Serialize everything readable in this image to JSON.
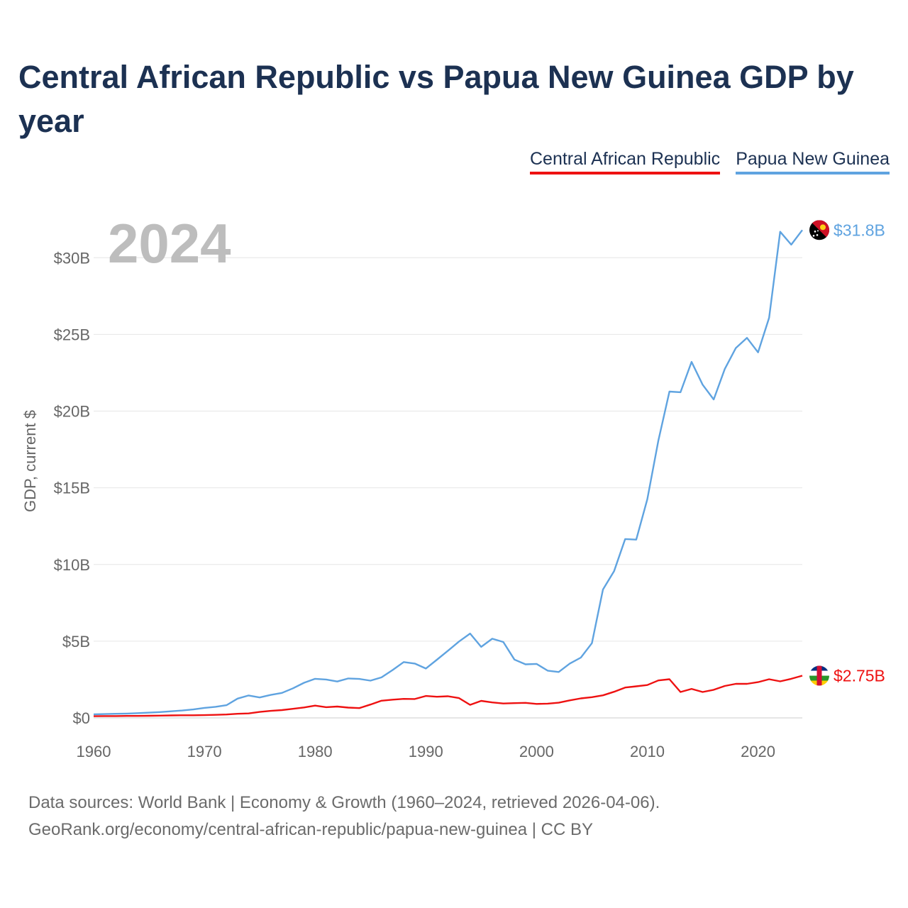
{
  "chart_data": {
    "type": "line",
    "title": "Central African Republic vs Papua New Guinea GDP by year",
    "ylabel": "GDP, current $",
    "xlabel": "",
    "year_label": "2024",
    "xlim": [
      1960,
      2024
    ],
    "ylim": [
      0,
      32000000000
    ],
    "x_ticks": [
      1960,
      1970,
      1980,
      1990,
      2000,
      2010,
      2020
    ],
    "x_tick_labels": [
      "1960",
      "1970",
      "1980",
      "1990",
      "2000",
      "2010",
      "2020"
    ],
    "y_ticks": [
      0,
      5000000000,
      10000000000,
      15000000000,
      20000000000,
      25000000000,
      30000000000
    ],
    "y_tick_labels": [
      "$0",
      "$5B",
      "$10B",
      "$15B",
      "$20B",
      "$25B",
      "$30B"
    ],
    "grid": true,
    "legend_position": "top-right",
    "x": [
      1960,
      1961,
      1962,
      1963,
      1964,
      1965,
      1966,
      1967,
      1968,
      1969,
      1970,
      1971,
      1972,
      1973,
      1974,
      1975,
      1976,
      1977,
      1978,
      1979,
      1980,
      1981,
      1982,
      1983,
      1984,
      1985,
      1986,
      1987,
      1988,
      1989,
      1990,
      1991,
      1992,
      1993,
      1994,
      1995,
      1996,
      1997,
      1998,
      1999,
      2000,
      2001,
      2002,
      2003,
      2004,
      2005,
      2006,
      2007,
      2008,
      2009,
      2010,
      2011,
      2012,
      2013,
      2014,
      2015,
      2016,
      2017,
      2018,
      2019,
      2020,
      2021,
      2022,
      2023,
      2024
    ],
    "series": [
      {
        "name": "Central African Republic",
        "color": "#ee1111",
        "end_label": "$2.75B",
        "flag": "central-african-republic-flag-icon",
        "values": [
          0.11,
          0.12,
          0.12,
          0.13,
          0.13,
          0.14,
          0.15,
          0.16,
          0.17,
          0.17,
          0.18,
          0.2,
          0.22,
          0.27,
          0.29,
          0.39,
          0.46,
          0.51,
          0.59,
          0.68,
          0.8,
          0.7,
          0.74,
          0.67,
          0.64,
          0.87,
          1.12,
          1.19,
          1.24,
          1.23,
          1.43,
          1.38,
          1.41,
          1.29,
          0.85,
          1.11,
          1.01,
          0.94,
          0.96,
          0.98,
          0.91,
          0.93,
          0.99,
          1.14,
          1.27,
          1.35,
          1.47,
          1.7,
          1.98,
          2.06,
          2.14,
          2.44,
          2.52,
          1.69,
          1.89,
          1.69,
          1.83,
          2.08,
          2.22,
          2.22,
          2.33,
          2.52,
          2.38,
          2.55,
          2.75
        ]
      },
      {
        "name": "Papua New Guinea",
        "color": "#5fa3e0",
        "end_label": "$31.8B",
        "flag": "papua-new-guinea-flag-icon",
        "values": [
          0.23,
          0.25,
          0.27,
          0.28,
          0.31,
          0.34,
          0.38,
          0.43,
          0.48,
          0.55,
          0.65,
          0.72,
          0.83,
          1.26,
          1.46,
          1.33,
          1.5,
          1.63,
          1.93,
          2.29,
          2.55,
          2.5,
          2.37,
          2.57,
          2.54,
          2.43,
          2.64,
          3.12,
          3.64,
          3.54,
          3.22,
          3.79,
          4.38,
          4.98,
          5.5,
          4.63,
          5.16,
          4.95,
          3.8,
          3.49,
          3.52,
          3.08,
          2.99,
          3.54,
          3.93,
          4.87,
          8.37,
          9.56,
          11.66,
          11.62,
          14.25,
          18.08,
          21.27,
          21.23,
          23.21,
          21.72,
          20.76,
          22.74,
          24.11,
          24.77,
          23.83,
          26.08,
          31.69,
          30.85,
          31.8
        ]
      }
    ],
    "value_unit": "billions USD"
  },
  "footer": {
    "line1": "Data sources: World Bank | Economy & Growth (1960–2024, retrieved 2026-04-06).",
    "line2": "GeoRank.org/economy/central-african-republic/papua-new-guinea | CC BY"
  }
}
